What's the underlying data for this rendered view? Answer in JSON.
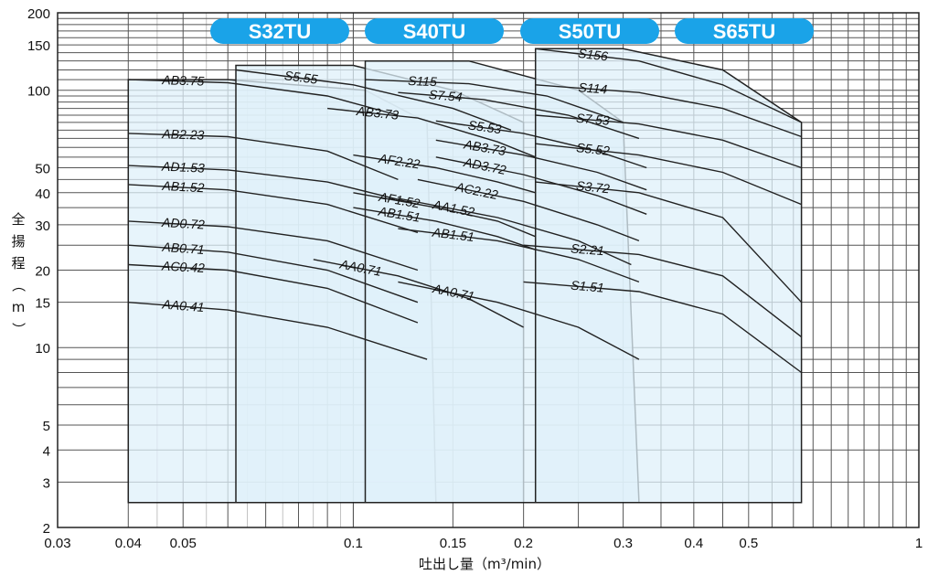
{
  "chart_data": {
    "type": "area",
    "xscale": "log",
    "yscale": "log",
    "xlim": [
      0.03,
      1
    ],
    "ylim": [
      2,
      200
    ],
    "xticks": [
      {
        "v": 0.03,
        "label": "0.03"
      },
      {
        "v": 0.04,
        "label": "0.04"
      },
      {
        "v": 0.05,
        "label": "0.05"
      },
      {
        "v": 0.1,
        "label": "0.1"
      },
      {
        "v": 0.15,
        "label": "0.15"
      },
      {
        "v": 0.2,
        "label": "0.2"
      },
      {
        "v": 0.3,
        "label": "0.3"
      },
      {
        "v": 0.4,
        "label": "0.4"
      },
      {
        "v": 0.5,
        "label": "0.5"
      },
      {
        "v": 1,
        "label": "1"
      }
    ],
    "yticks": [
      {
        "v": 2,
        "label": "2"
      },
      {
        "v": 3,
        "label": "3"
      },
      {
        "v": 4,
        "label": "4"
      },
      {
        "v": 5,
        "label": "5"
      },
      {
        "v": 10,
        "label": "10"
      },
      {
        "v": 15,
        "label": "15"
      },
      {
        "v": 20,
        "label": "20"
      },
      {
        "v": 30,
        "label": "30"
      },
      {
        "v": 40,
        "label": "40"
      },
      {
        "v": 50,
        "label": "50"
      },
      {
        "v": 100,
        "label": "100"
      },
      {
        "v": 150,
        "label": "150"
      },
      {
        "v": 200,
        "label": "200"
      }
    ],
    "xlabel": "吐出し量（m³/min）",
    "ylabel": "全揚程（m）",
    "fill_color": "#dff0f9",
    "badge_color": "#1aa3e8",
    "series": [
      {
        "name": "S32TU",
        "region": [
          [
            0.04,
            2.5
          ],
          [
            0.04,
            110
          ],
          [
            0.06,
            110
          ],
          [
            0.105,
            100
          ],
          [
            0.135,
            75
          ],
          [
            0.14,
            2.5
          ]
        ],
        "curves": [
          {
            "label": "AB3.75",
            "points": [
              [
                0.04,
                110
              ],
              [
                0.06,
                107
              ],
              [
                0.09,
                95
              ],
              [
                0.12,
                80
              ]
            ]
          },
          {
            "label": "AB2.23",
            "points": [
              [
                0.04,
                68
              ],
              [
                0.06,
                66
              ],
              [
                0.09,
                58
              ],
              [
                0.12,
                45
              ]
            ]
          },
          {
            "label": "AD1.53",
            "points": [
              [
                0.04,
                51
              ],
              [
                0.06,
                49
              ],
              [
                0.09,
                44
              ],
              [
                0.13,
                36
              ]
            ]
          },
          {
            "label": "AB1.52",
            "points": [
              [
                0.04,
                43
              ],
              [
                0.06,
                41
              ],
              [
                0.09,
                36
              ],
              [
                0.13,
                28
              ]
            ]
          },
          {
            "label": "AD0.72",
            "points": [
              [
                0.04,
                31
              ],
              [
                0.06,
                29.5
              ],
              [
                0.09,
                26
              ],
              [
                0.13,
                20
              ]
            ]
          },
          {
            "label": "AB0.71",
            "points": [
              [
                0.04,
                25
              ],
              [
                0.06,
                23.5
              ],
              [
                0.09,
                20
              ],
              [
                0.13,
                15
              ]
            ]
          },
          {
            "label": "AC0.42",
            "points": [
              [
                0.04,
                21
              ],
              [
                0.06,
                20
              ],
              [
                0.09,
                17
              ],
              [
                0.13,
                12.5
              ]
            ]
          },
          {
            "label": "AA0.41",
            "points": [
              [
                0.04,
                15
              ],
              [
                0.06,
                14
              ],
              [
                0.09,
                12
              ],
              [
                0.135,
                9
              ]
            ]
          }
        ]
      },
      {
        "name": "S40TU",
        "region": [
          [
            0.062,
            2.5
          ],
          [
            0.062,
            125
          ],
          [
            0.1,
            125
          ],
          [
            0.15,
            100
          ],
          [
            0.2,
            75
          ],
          [
            0.2,
            2.5
          ]
        ],
        "curves": [
          {
            "label": "S5.55",
            "points": [
              [
                0.062,
                120
              ],
              [
                0.1,
                105
              ],
              [
                0.15,
                85
              ],
              [
                0.19,
                70
              ]
            ]
          },
          {
            "label": "AB3.73",
            "points": [
              [
                0.09,
                85
              ],
              [
                0.13,
                78
              ],
              [
                0.18,
                63
              ],
              [
                0.21,
                55
              ]
            ]
          },
          {
            "label": "AF2.22",
            "points": [
              [
                0.1,
                56
              ],
              [
                0.14,
                50
              ],
              [
                0.18,
                44
              ],
              [
                0.21,
                40
              ]
            ]
          },
          {
            "label": "AF1.52",
            "points": [
              [
                0.1,
                40
              ],
              [
                0.14,
                35
              ],
              [
                0.18,
                31
              ],
              [
                0.21,
                27
              ]
            ]
          },
          {
            "label": "AB1.51",
            "points": [
              [
                0.1,
                35
              ],
              [
                0.14,
                31
              ],
              [
                0.18,
                27
              ],
              [
                0.21,
                24
              ]
            ]
          },
          {
            "label": "AA0.71",
            "points": [
              [
                0.085,
                22
              ],
              [
                0.12,
                19
              ],
              [
                0.16,
                15.5
              ],
              [
                0.2,
                12
              ]
            ]
          }
        ]
      },
      {
        "name": "S50TU",
        "region": [
          [
            0.105,
            2.5
          ],
          [
            0.105,
            130
          ],
          [
            0.16,
            130
          ],
          [
            0.25,
            100
          ],
          [
            0.3,
            75
          ],
          [
            0.32,
            2.5
          ]
        ],
        "curves": [
          {
            "label": "S115",
            "points": [
              [
                0.105,
                110
              ],
              [
                0.16,
                106
              ],
              [
                0.22,
                95
              ],
              [
                0.3,
                75
              ]
            ]
          },
          {
            "label": "S7.54",
            "points": [
              [
                0.12,
                98
              ],
              [
                0.17,
                92
              ],
              [
                0.24,
                80
              ],
              [
                0.32,
                65
              ]
            ]
          },
          {
            "label": "S5.53",
            "points": [
              [
                0.14,
                76
              ],
              [
                0.2,
                68
              ],
              [
                0.27,
                58
              ],
              [
                0.33,
                50
              ]
            ]
          },
          {
            "label": "AB3.73",
            "points": [
              [
                0.14,
                64
              ],
              [
                0.2,
                56
              ],
              [
                0.27,
                48
              ],
              [
                0.33,
                41
              ]
            ]
          },
          {
            "label": "AD3.72",
            "points": [
              [
                0.14,
                55
              ],
              [
                0.2,
                47
              ],
              [
                0.27,
                39
              ],
              [
                0.33,
                33
              ]
            ]
          },
          {
            "label": "AC2.22",
            "points": [
              [
                0.13,
                45
              ],
              [
                0.2,
                37
              ],
              [
                0.27,
                30
              ],
              [
                0.32,
                26
              ]
            ]
          },
          {
            "label": "AA1.52",
            "points": [
              [
                0.12,
                38
              ],
              [
                0.18,
                32
              ],
              [
                0.25,
                26
              ],
              [
                0.31,
                21
              ]
            ]
          },
          {
            "label": "AB1.51",
            "points": [
              [
                0.12,
                29
              ],
              [
                0.18,
                26
              ],
              [
                0.25,
                22
              ],
              [
                0.32,
                18
              ]
            ]
          },
          {
            "label": "AA0.71",
            "points": [
              [
                0.12,
                18
              ],
              [
                0.18,
                15
              ],
              [
                0.25,
                12
              ],
              [
                0.32,
                9
              ]
            ]
          }
        ]
      },
      {
        "name": "S65TU",
        "region": [
          [
            0.21,
            2.5
          ],
          [
            0.21,
            145
          ],
          [
            0.3,
            145
          ],
          [
            0.45,
            120
          ],
          [
            0.62,
            75
          ],
          [
            0.62,
            2.5
          ]
        ],
        "curves": [
          {
            "label": "S156",
            "points": [
              [
                0.21,
                145
              ],
              [
                0.32,
                130
              ],
              [
                0.45,
                105
              ],
              [
                0.62,
                75
              ]
            ]
          },
          {
            "label": "S114",
            "points": [
              [
                0.21,
                105
              ],
              [
                0.32,
                98
              ],
              [
                0.45,
                85
              ],
              [
                0.62,
                66
              ]
            ]
          },
          {
            "label": "S7.53",
            "points": [
              [
                0.21,
                80
              ],
              [
                0.32,
                74
              ],
              [
                0.45,
                64
              ],
              [
                0.62,
                50
              ]
            ]
          },
          {
            "label": "S5.52",
            "points": [
              [
                0.21,
                62
              ],
              [
                0.32,
                56
              ],
              [
                0.45,
                48
              ],
              [
                0.62,
                36
              ]
            ]
          },
          {
            "label": "S3.72",
            "points": [
              [
                0.21,
                44
              ],
              [
                0.32,
                40
              ],
              [
                0.45,
                32
              ],
              [
                0.62,
                15
              ]
            ]
          },
          {
            "label": "S2.21",
            "points": [
              [
                0.2,
                25
              ],
              [
                0.32,
                23
              ],
              [
                0.45,
                19
              ],
              [
                0.62,
                11
              ]
            ]
          },
          {
            "label": "S1.51",
            "points": [
              [
                0.2,
                18
              ],
              [
                0.32,
                16.5
              ],
              [
                0.45,
                13.5
              ],
              [
                0.62,
                8
              ]
            ]
          }
        ]
      }
    ]
  }
}
